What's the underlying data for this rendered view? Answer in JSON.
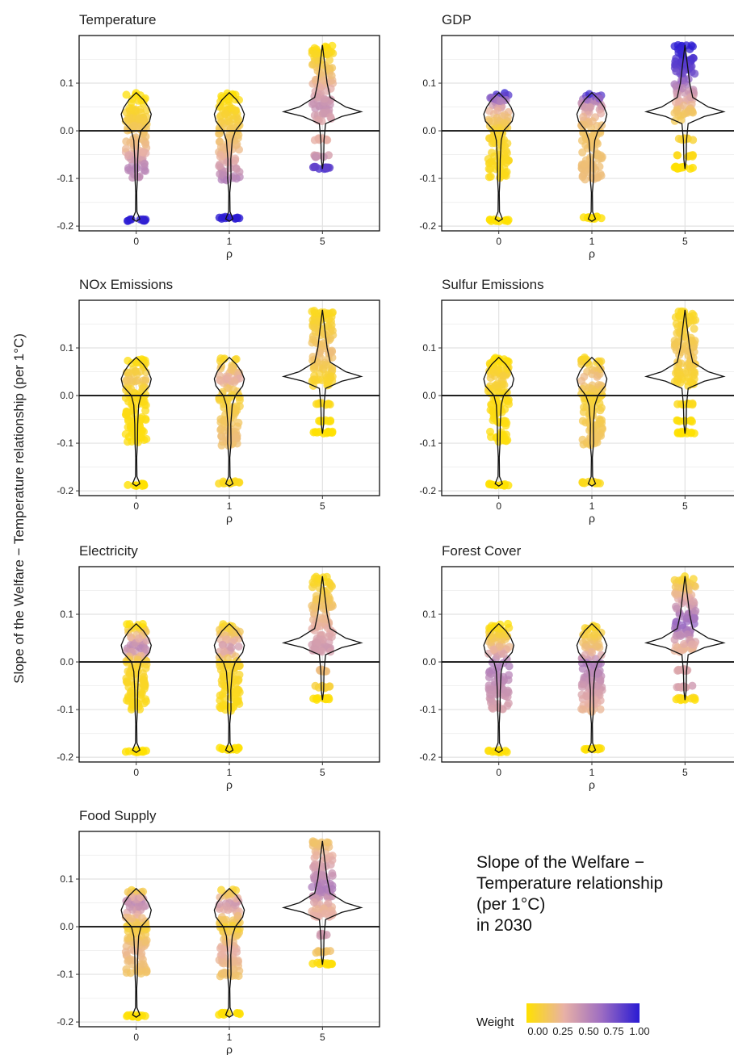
{
  "y_axis_label": "Slope of the Welfare − Temperature relationship (per 1°C)",
  "side_title": [
    "Slope of the Welfare −",
    "Temperature relationship",
    "(per 1°C)",
    "in 2030"
  ],
  "legend": {
    "title": "Weight",
    "ticks": [
      "0.00",
      "0.25",
      "0.50",
      "0.75",
      "1.00"
    ],
    "colors": [
      "#ffe100",
      "#e8b1a6",
      "#9c6cc2",
      "#2a1bd3"
    ]
  },
  "chart_data": [
    {
      "type": "scatter",
      "title": "Temperature",
      "xlabel": "ρ",
      "categories": [
        "0",
        "1",
        "5"
      ],
      "ylim": [
        -0.21,
        0.2
      ],
      "yticks": [
        "-0.2",
        "-0.1",
        "0.0",
        "0.1"
      ],
      "weight_profile": {
        "0": [
          [
            0.08,
            0.0
          ],
          [
            -0.04,
            0.3
          ],
          [
            -0.075,
            0.55
          ],
          [
            -0.1,
            0.5
          ],
          [
            -0.19,
            1.0
          ]
        ],
        "1": [
          [
            0.08,
            0.0
          ],
          [
            -0.05,
            0.3
          ],
          [
            -0.09,
            0.5
          ],
          [
            -0.185,
            1.0
          ]
        ],
        "5": [
          [
            0.18,
            0.0
          ],
          [
            0.05,
            0.5
          ],
          [
            0.0,
            0.3
          ],
          [
            -0.05,
            0.4
          ],
          [
            -0.08,
            0.9
          ]
        ]
      }
    },
    {
      "type": "scatter",
      "title": "GDP",
      "xlabel": "ρ",
      "categories": [
        "0",
        "1",
        "5"
      ],
      "ylim": [
        -0.21,
        0.2
      ],
      "yticks": [
        "-0.2",
        "-0.1",
        "0.0",
        "0.1"
      ],
      "weight_profile": {
        "0": [
          [
            0.08,
            1.0
          ],
          [
            0.06,
            0.5
          ],
          [
            0.04,
            0.3
          ],
          [
            0.0,
            0.1
          ],
          [
            -0.19,
            0.0
          ]
        ],
        "1": [
          [
            0.08,
            1.0
          ],
          [
            0.06,
            0.5
          ],
          [
            0.03,
            0.3
          ],
          [
            0.0,
            0.2
          ],
          [
            -0.1,
            0.25
          ],
          [
            -0.185,
            0.0
          ]
        ],
        "5": [
          [
            0.18,
            1.0
          ],
          [
            0.12,
            0.8
          ],
          [
            0.08,
            0.45
          ],
          [
            0.04,
            0.2
          ],
          [
            -0.08,
            0.0
          ]
        ]
      }
    },
    {
      "type": "scatter",
      "title": "NOx Emissions",
      "xlabel": "ρ",
      "categories": [
        "0",
        "1",
        "5"
      ],
      "ylim": [
        -0.21,
        0.2
      ],
      "yticks": [
        "-0.2",
        "-0.1",
        "0.0",
        "0.1"
      ],
      "weight_profile": {
        "0": [
          [
            0.08,
            0.0
          ],
          [
            0.035,
            0.2
          ],
          [
            0.0,
            0.05
          ],
          [
            -0.19,
            0.0
          ]
        ],
        "1": [
          [
            0.08,
            0.05
          ],
          [
            0.035,
            0.35
          ],
          [
            0.0,
            0.1
          ],
          [
            -0.09,
            0.25
          ],
          [
            -0.185,
            0.05
          ]
        ],
        "5": [
          [
            0.18,
            0.05
          ],
          [
            0.09,
            0.25
          ],
          [
            0.04,
            0.1
          ],
          [
            -0.08,
            0.0
          ]
        ]
      }
    },
    {
      "type": "scatter",
      "title": "Sulfur Emissions",
      "xlabel": "ρ",
      "categories": [
        "0",
        "1",
        "5"
      ],
      "ylim": [
        -0.21,
        0.2
      ],
      "yticks": [
        "-0.2",
        "-0.1",
        "0.0",
        "0.1"
      ],
      "weight_profile": {
        "0": [
          [
            0.08,
            0.0
          ],
          [
            0.035,
            0.15
          ],
          [
            0.0,
            0.05
          ],
          [
            -0.19,
            0.0
          ]
        ],
        "1": [
          [
            0.08,
            0.05
          ],
          [
            0.035,
            0.3
          ],
          [
            0.0,
            0.1
          ],
          [
            -0.09,
            0.2
          ],
          [
            -0.185,
            0.05
          ]
        ],
        "5": [
          [
            0.18,
            0.05
          ],
          [
            0.09,
            0.2
          ],
          [
            0.04,
            0.1
          ],
          [
            -0.08,
            0.0
          ]
        ]
      }
    },
    {
      "type": "scatter",
      "title": "Electricity",
      "xlabel": "ρ",
      "categories": [
        "0",
        "1",
        "5"
      ],
      "ylim": [
        -0.21,
        0.2
      ],
      "yticks": [
        "-0.2",
        "-0.1",
        "0.0",
        "0.1"
      ],
      "weight_profile": {
        "0": [
          [
            0.08,
            0.0
          ],
          [
            0.03,
            0.55
          ],
          [
            0.0,
            0.1
          ],
          [
            -0.19,
            0.0
          ]
        ],
        "1": [
          [
            0.08,
            0.05
          ],
          [
            0.03,
            0.45
          ],
          [
            0.0,
            0.1
          ],
          [
            -0.185,
            0.0
          ]
        ],
        "5": [
          [
            0.18,
            0.05
          ],
          [
            0.03,
            0.45
          ],
          [
            -0.08,
            0.0
          ]
        ]
      }
    },
    {
      "type": "scatter",
      "title": "Forest Cover",
      "xlabel": "ρ",
      "categories": [
        "0",
        "1",
        "5"
      ],
      "ylim": [
        -0.21,
        0.2
      ],
      "yticks": [
        "-0.2",
        "-0.1",
        "0.0",
        "0.1"
      ],
      "weight_profile": {
        "0": [
          [
            0.08,
            0.0
          ],
          [
            0.02,
            0.35
          ],
          [
            0.0,
            0.6
          ],
          [
            -0.1,
            0.4
          ],
          [
            -0.19,
            0.0
          ]
        ],
        "1": [
          [
            0.08,
            0.05
          ],
          [
            0.02,
            0.3
          ],
          [
            0.0,
            0.6
          ],
          [
            -0.1,
            0.3
          ],
          [
            -0.185,
            0.0
          ]
        ],
        "5": [
          [
            0.18,
            0.05
          ],
          [
            0.08,
            0.7
          ],
          [
            0.03,
            0.3
          ],
          [
            -0.05,
            0.45
          ],
          [
            -0.08,
            0.0
          ]
        ]
      }
    },
    {
      "type": "scatter",
      "title": "Food Supply",
      "xlabel": "ρ",
      "categories": [
        "0",
        "1",
        "5"
      ],
      "ylim": [
        -0.21,
        0.2
      ],
      "yticks": [
        "-0.2",
        "-0.1",
        "0.0",
        "0.1"
      ],
      "weight_profile": {
        "0": [
          [
            0.08,
            0.05
          ],
          [
            0.05,
            0.55
          ],
          [
            0.0,
            0.1
          ],
          [
            -0.05,
            0.3
          ],
          [
            -0.19,
            0.0
          ]
        ],
        "1": [
          [
            0.08,
            0.05
          ],
          [
            0.05,
            0.45
          ],
          [
            0.0,
            0.1
          ],
          [
            -0.05,
            0.35
          ],
          [
            -0.185,
            0.0
          ]
        ],
        "5": [
          [
            0.18,
            0.2
          ],
          [
            0.08,
            0.6
          ],
          [
            0.04,
            0.3
          ],
          [
            -0.02,
            0.45
          ],
          [
            -0.08,
            0.0
          ]
        ]
      }
    }
  ]
}
